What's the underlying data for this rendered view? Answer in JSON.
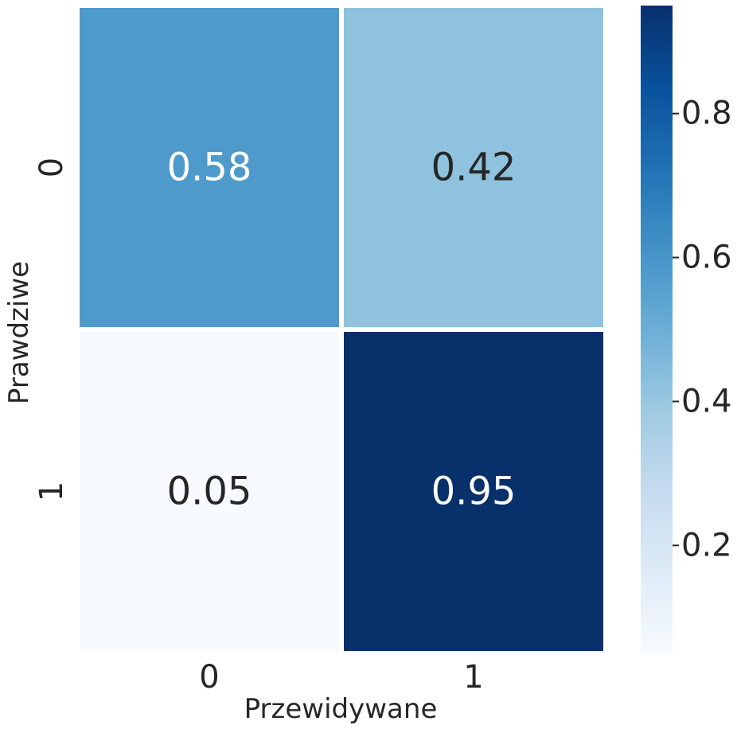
{
  "chart_data": {
    "type": "heatmap",
    "title": "",
    "xlabel": "Przewidywane",
    "ylabel": "Prawdziwe",
    "x_categories": [
      "0",
      "1"
    ],
    "y_categories": [
      "0",
      "1"
    ],
    "values": [
      [
        0.58,
        0.42
      ],
      [
        0.05,
        0.95
      ]
    ],
    "value_labels": [
      [
        "0.58",
        "0.42"
      ],
      [
        "0.05",
        "0.95"
      ]
    ],
    "colormap": "Blues",
    "colorbar": {
      "min": 0.05,
      "max": 0.95,
      "ticks": [
        0.2,
        0.4,
        0.6,
        0.8
      ],
      "tick_labels": [
        "0.2",
        "0.4",
        "0.6",
        "0.8"
      ]
    },
    "grid": false,
    "legend": "colorbar-right"
  }
}
